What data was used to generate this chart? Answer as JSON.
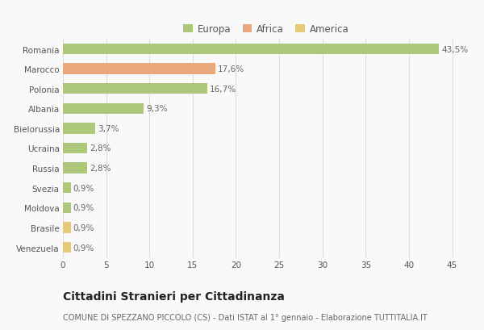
{
  "categories": [
    "Romania",
    "Marocco",
    "Polonia",
    "Albania",
    "Bielorussia",
    "Ucraina",
    "Russia",
    "Svezia",
    "Moldova",
    "Brasile",
    "Venezuela"
  ],
  "values": [
    43.5,
    17.6,
    16.7,
    9.3,
    3.7,
    2.8,
    2.8,
    0.9,
    0.9,
    0.9,
    0.9
  ],
  "labels": [
    "43,5%",
    "17,6%",
    "16,7%",
    "9,3%",
    "3,7%",
    "2,8%",
    "2,8%",
    "0,9%",
    "0,9%",
    "0,9%",
    "0,9%"
  ],
  "colors": [
    "#adc87a",
    "#e8a87c",
    "#adc87a",
    "#adc87a",
    "#adc87a",
    "#adc87a",
    "#adc87a",
    "#adc87a",
    "#adc87a",
    "#e8c97a",
    "#e8c97a"
  ],
  "legend": {
    "Europa": "#adc87a",
    "Africa": "#e8a87c",
    "America": "#e8c97a"
  },
  "title": "Cittadini Stranieri per Cittadinanza",
  "subtitle": "COMUNE DI SPEZZANO PICCOLO (CS) - Dati ISTAT al 1° gennaio - Elaborazione TUTTITALIA.IT",
  "xlim": [
    0,
    47
  ],
  "xticks": [
    0,
    5,
    10,
    15,
    20,
    25,
    30,
    35,
    40,
    45
  ],
  "background_color": "#f9f9f9",
  "grid_color": "#dddddd",
  "bar_height": 0.55,
  "label_fontsize": 7.5,
  "title_fontsize": 10,
  "subtitle_fontsize": 7,
  "tick_fontsize": 7.5,
  "legend_fontsize": 8.5
}
